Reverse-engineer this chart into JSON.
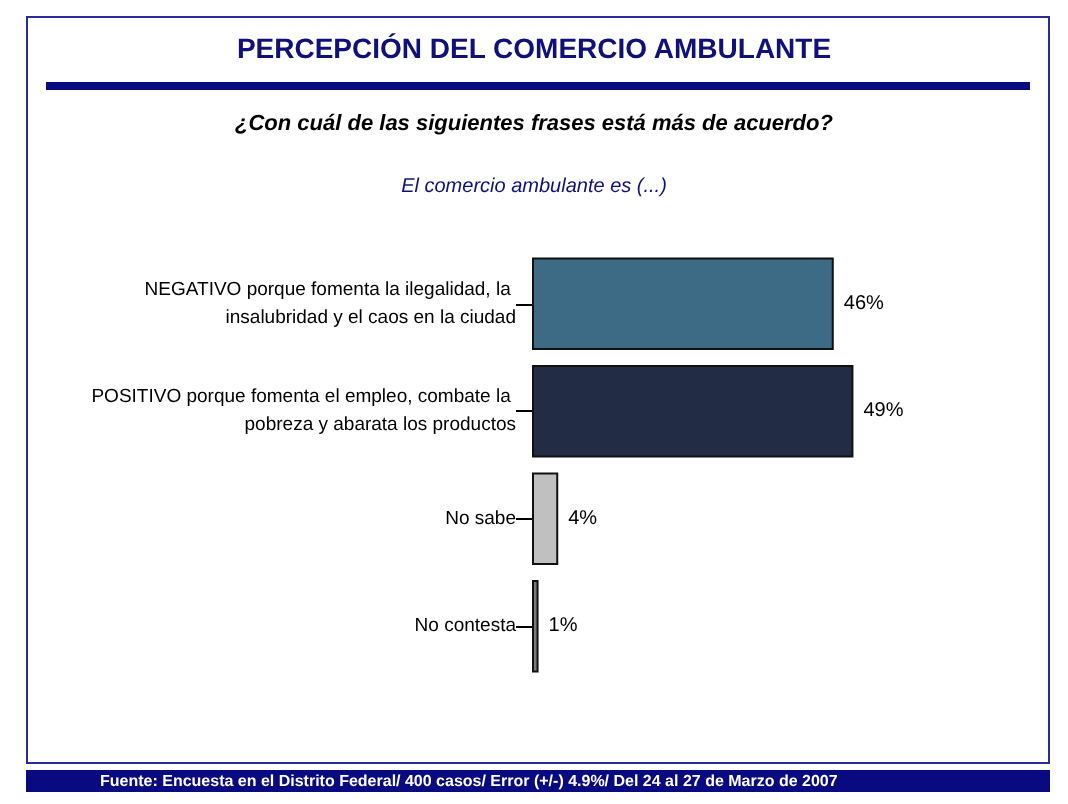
{
  "chart_data": {
    "type": "bar",
    "orientation": "horizontal",
    "title": "PERCEPCIÓN DEL COMERCIO AMBULANTE",
    "subtitle": "¿Con cuál de las siguientes frases está más de acuerdo?",
    "annotations": [
      "El comercio ambulante es (...)",
      "Fuente: Encuesta en el Distrito Federal/ 400 casos/ Error (+/-) 4.9%/ Del 24 al 27 de Marzo de 2007"
    ],
    "categories": [
      "NEGATIVO porque fomenta la ilegalidad, la insalubridad y el caos en la ciudad",
      "POSITIVO porque fomenta el empleo, combate la pobreza y abarata los productos",
      "No sabe",
      "No contesta"
    ],
    "values": [
      46,
      49,
      4,
      1
    ],
    "colors": [
      "#3d6b85",
      "#222c45",
      "#c0c0c0",
      "#7a7a7a"
    ],
    "value_labels": [
      "46%",
      "49%",
      "4%",
      "1%"
    ]
  }
}
